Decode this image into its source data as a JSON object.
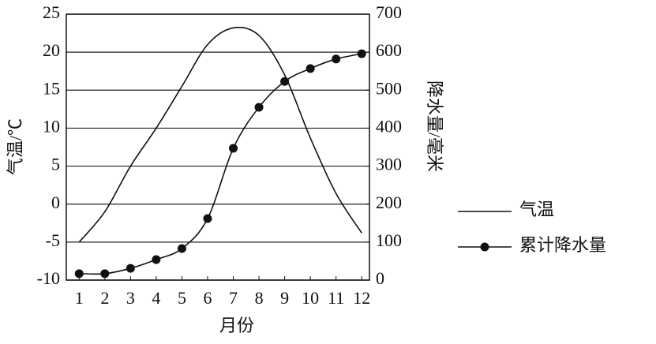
{
  "chart_data": {
    "type": "line",
    "x_label": "月份",
    "y_label": "气温/℃",
    "y2_label": "降水量/毫米",
    "x": [
      1,
      2,
      3,
      4,
      5,
      6,
      7,
      8,
      9,
      10,
      11,
      12
    ],
    "xlim": [
      0.5,
      12.3
    ],
    "xticks": [
      1,
      2,
      3,
      4,
      5,
      6,
      7,
      8,
      9,
      10,
      11,
      12
    ],
    "ylim": [
      -10,
      25
    ],
    "yticks": [
      -10,
      -5,
      0,
      5,
      10,
      15,
      20,
      25
    ],
    "y2lim": [
      0,
      700
    ],
    "y2ticks": [
      0,
      100,
      200,
      300,
      400,
      500,
      600,
      700
    ],
    "grid": true,
    "legend": "right",
    "series": [
      {
        "name": "气温",
        "color": "#111111",
        "values": [
          -5,
          -1,
          5,
          10,
          15.5,
          21,
          23.2,
          22.2,
          17,
          8.7,
          1.4,
          -3.8
        ]
      },
      {
        "name": "累计降水量",
        "color": "#111111",
        "axis": "y2",
        "markers": true,
        "values": [
          17,
          17,
          31,
          54,
          83,
          162,
          347,
          455,
          523,
          557,
          582,
          596
        ]
      }
    ]
  }
}
